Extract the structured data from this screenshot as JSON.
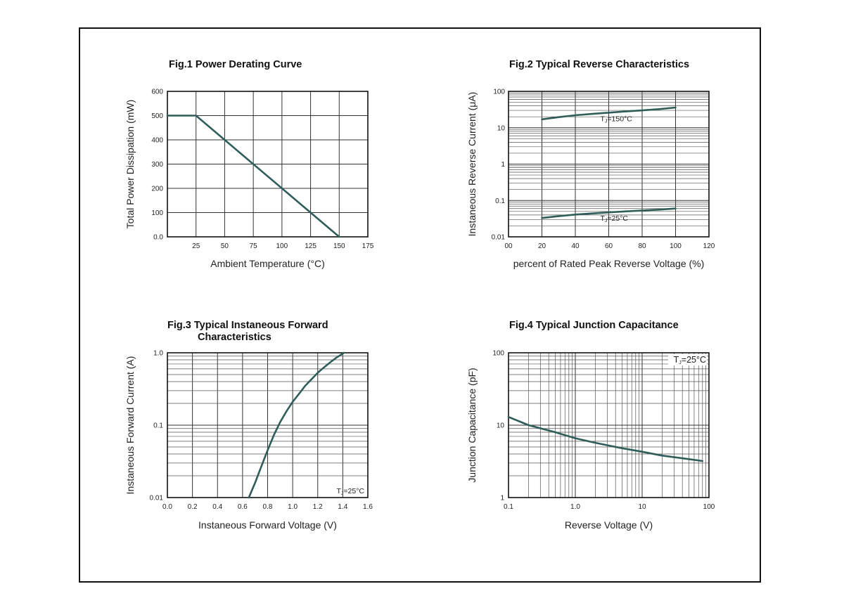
{
  "curve_color": "#2f5d5a",
  "chart_data": [
    {
      "type": "line",
      "title": "Fig.1  Power Derating Curve",
      "xlabel": "Ambient Temperature (°C)",
      "ylabel": "Total Power Dissipation  (mW)",
      "xlim": [
        0,
        175
      ],
      "ylim": [
        0,
        600
      ],
      "x_scale": "linear",
      "y_scale": "linear",
      "x_ticks": [
        "25",
        "50",
        "75",
        "100",
        "125",
        "150",
        "175"
      ],
      "y_ticks": [
        "0.0",
        "100",
        "200",
        "300",
        "400",
        "500",
        "600"
      ],
      "grid": true,
      "series": [
        {
          "x": [
            0,
            25,
            150
          ],
          "y": [
            500,
            500,
            0
          ]
        }
      ]
    },
    {
      "type": "line",
      "title": "Fig.2  Typical Reverse Characteristics",
      "xlabel": "percent of Rated  Peak Reverse Voltage (%)",
      "ylabel": "Instaneous Reverse Current  (μA)",
      "xlim": [
        0,
        120
      ],
      "ylim": [
        0.01,
        100
      ],
      "x_scale": "linear",
      "y_scale": "log",
      "x_ticks": [
        "00",
        "20",
        "40",
        "60",
        "80",
        "100",
        "120"
      ],
      "y_ticks": [
        "0.01",
        "0.1",
        "1",
        "10",
        "100"
      ],
      "grid": true,
      "series": [
        {
          "label": "TJ=150°C",
          "label_main": "T",
          "label_sub": "J",
          "label_rest": "=150°C",
          "x": [
            20,
            30,
            40,
            50,
            60,
            70,
            80,
            90,
            100
          ],
          "y": [
            17,
            19.5,
            22,
            24,
            26,
            28,
            30,
            32.5,
            36
          ]
        },
        {
          "label": "TJ=25°C",
          "label_main": "T",
          "label_sub": "J",
          "label_rest": "=25°C",
          "x": [
            20,
            30,
            40,
            50,
            60,
            70,
            80,
            90,
            100
          ],
          "y": [
            0.033,
            0.037,
            0.041,
            0.044,
            0.047,
            0.05,
            0.053,
            0.056,
            0.06
          ]
        }
      ]
    },
    {
      "type": "line",
      "title": "Fig.3  Typical Instaneous Forward",
      "title2": "Characteristics",
      "xlabel": "Instaneous Forward Voltage (V)",
      "ylabel": "Instaneous Forward Current (A)",
      "xlim": [
        0,
        1.6
      ],
      "ylim": [
        0.01,
        1.0
      ],
      "x_scale": "linear",
      "y_scale": "log",
      "x_ticks": [
        "0.0",
        "0.2",
        "0.4",
        "0.6",
        "0.8",
        "1.0",
        "1.2",
        "1.4",
        "1.6"
      ],
      "y_ticks": [
        "0.01",
        "0.1",
        "1.0"
      ],
      "grid": true,
      "annotation": {
        "main": "T",
        "sub": "J",
        "rest": "=25°C"
      },
      "series": [
        {
          "x": [
            0.65,
            0.7,
            0.75,
            0.8,
            0.85,
            0.9,
            0.95,
            1.0,
            1.05,
            1.1,
            1.15,
            1.2,
            1.25,
            1.3,
            1.35,
            1.41
          ],
          "y": [
            0.01,
            0.016,
            0.027,
            0.045,
            0.073,
            0.11,
            0.155,
            0.21,
            0.27,
            0.35,
            0.43,
            0.53,
            0.63,
            0.74,
            0.86,
            1.0
          ]
        }
      ]
    },
    {
      "type": "line",
      "title": "Fig.4  Typical Junction Capacitance",
      "xlabel": "Reverse  Voltage (V)",
      "ylabel": "Junction Capacitance (pF)",
      "xlim": [
        0.1,
        100
      ],
      "ylim": [
        1,
        100
      ],
      "x_scale": "log",
      "y_scale": "log",
      "x_ticks": [
        "0.1",
        "1.0",
        "10",
        "100"
      ],
      "y_ticks": [
        "1",
        "10",
        "100"
      ],
      "grid": true,
      "annotation": {
        "main": "T",
        "sub": "J",
        "rest": "=25°C"
      },
      "series": [
        {
          "x": [
            0.1,
            0.2,
            0.5,
            1,
            2,
            5,
            10,
            20,
            50,
            80
          ],
          "y": [
            13,
            10,
            8,
            6.6,
            5.7,
            4.8,
            4.3,
            3.8,
            3.4,
            3.2
          ]
        }
      ]
    }
  ]
}
